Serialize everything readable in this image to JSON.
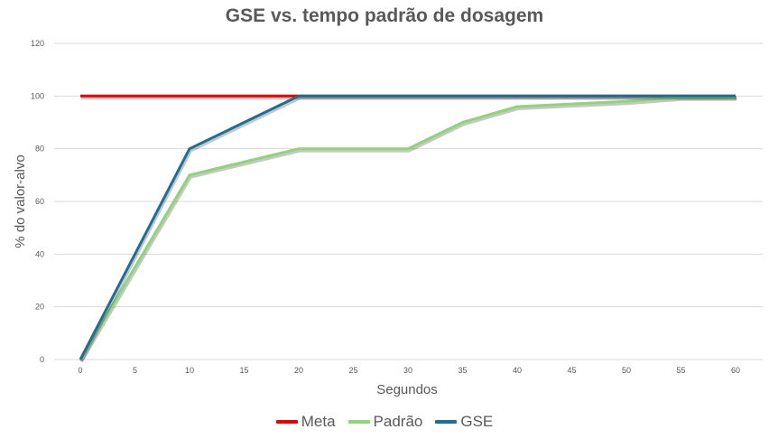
{
  "chart_data": {
    "type": "line",
    "title": "GSE vs. tempo padrão de dosagem",
    "xlabel": "Segundos",
    "ylabel": "% do valor-alvo",
    "x": [
      0,
      5,
      10,
      15,
      20,
      25,
      30,
      35,
      40,
      45,
      50,
      55,
      60
    ],
    "xlim": [
      0,
      60
    ],
    "ylim": [
      0,
      120
    ],
    "xticks": [
      0,
      5,
      10,
      15,
      20,
      25,
      30,
      35,
      40,
      45,
      50,
      55,
      60
    ],
    "yticks": [
      0,
      20,
      40,
      60,
      80,
      100,
      120
    ],
    "grid": true,
    "legend_position": "bottom",
    "series": [
      {
        "name": "Meta",
        "color": "#e00000",
        "points": [
          [
            0,
            100
          ],
          [
            60,
            100
          ]
        ]
      },
      {
        "name": "Padrão",
        "color": "#8fd47a",
        "points": [
          [
            0,
            0
          ],
          [
            10,
            70
          ],
          [
            20,
            80
          ],
          [
            30,
            80
          ],
          [
            35,
            90
          ],
          [
            40,
            96
          ],
          [
            50,
            98
          ],
          [
            55,
            99.5
          ],
          [
            60,
            99.5
          ]
        ]
      },
      {
        "name": "GSE",
        "color": "#1f6f94",
        "points": [
          [
            0,
            0
          ],
          [
            10,
            80
          ],
          [
            20,
            100
          ],
          [
            60,
            100
          ]
        ]
      }
    ]
  }
}
